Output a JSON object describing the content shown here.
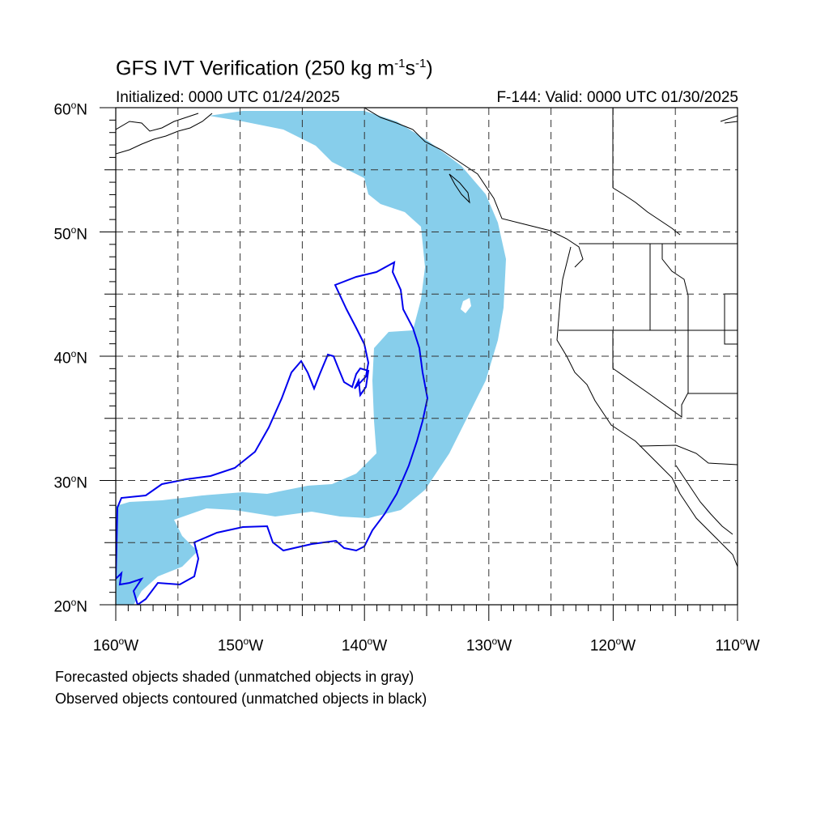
{
  "title_main": "GFS IVT Verification (250 kg m",
  "title_sup1": "-1",
  "title_mid": "s",
  "title_sup2": "-1",
  "title_end": ")",
  "init_text": "Initialized: 0000 UTC 01/24/2025",
  "valid_text": "F-144: Valid: 0000 UTC 01/30/2025",
  "lat_labels": [
    "60",
    "50",
    "40",
    "30",
    "20"
  ],
  "lat_suffix": "N",
  "lon_labels": [
    "160",
    "150",
    "140",
    "130",
    "120",
    "110"
  ],
  "lon_suffix": "W",
  "degree_symbol": "o",
  "note_forecast": "Forecasted objects shaded (unmatched objects in gray)",
  "note_observed": "Observed objects contoured (unmatched objects in black)",
  "colors": {
    "forecast_fill": "#87ceeb",
    "observed_contour": "#0000ee",
    "coastline": "#000000",
    "grid": "#333333"
  },
  "map_extent": {
    "lon_min": -160,
    "lon_max": -110,
    "lat_min": 20,
    "lat_max": 60
  },
  "gridlines": "dashed every 5 degrees"
}
